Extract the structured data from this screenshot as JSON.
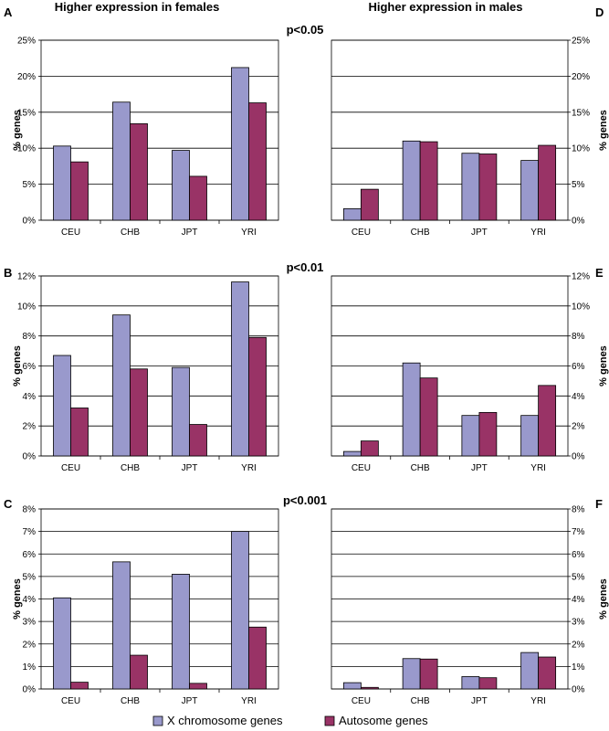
{
  "headers": {
    "left": "Higher expression in females",
    "right": "Higher expression in males"
  },
  "legend": {
    "x_label": "X chromosome genes",
    "auto_label": "Autosome genes"
  },
  "colors": {
    "x_chromosome": "#9999cc",
    "autosome": "#993366",
    "gridline": "#000000"
  },
  "chart_data": [
    {
      "type": "bar",
      "panel": "A",
      "significance": "p<0.05",
      "ylabel": "% genes",
      "ylim": [
        0,
        25
      ],
      "yticks": [
        "0%",
        "5%",
        "10%",
        "15%",
        "20%",
        "25%"
      ],
      "categories": [
        "CEU",
        "CHB",
        "JPT",
        "YRI"
      ],
      "series": [
        {
          "name": "X chromosome genes",
          "values": [
            10.3,
            16.4,
            9.7,
            21.2
          ]
        },
        {
          "name": "Autosome genes",
          "values": [
            8.1,
            13.4,
            6.1,
            16.3
          ]
        }
      ]
    },
    {
      "type": "bar",
      "panel": "D",
      "ylabel": "% genes",
      "ylim": [
        0,
        25
      ],
      "yticks": [
        "0%",
        "5%",
        "10%",
        "15%",
        "20%",
        "25%"
      ],
      "categories": [
        "CEU",
        "CHB",
        "JPT",
        "YRI"
      ],
      "series": [
        {
          "name": "X chromosome genes",
          "values": [
            1.6,
            11.0,
            9.3,
            8.3
          ]
        },
        {
          "name": "Autosome genes",
          "values": [
            4.3,
            10.9,
            9.2,
            10.4
          ]
        }
      ]
    },
    {
      "type": "bar",
      "panel": "B",
      "significance": "p<0.01",
      "ylabel": "% genes",
      "ylim": [
        0,
        12
      ],
      "yticks": [
        "0%",
        "2%",
        "4%",
        "6%",
        "8%",
        "10%",
        "12%"
      ],
      "categories": [
        "CEU",
        "CHB",
        "JPT",
        "YRI"
      ],
      "series": [
        {
          "name": "X chromosome genes",
          "values": [
            6.7,
            9.4,
            5.9,
            11.6
          ]
        },
        {
          "name": "Autosome genes",
          "values": [
            3.2,
            5.8,
            2.1,
            7.9
          ]
        }
      ]
    },
    {
      "type": "bar",
      "panel": "E",
      "ylabel": "% genes",
      "ylim": [
        0,
        12
      ],
      "yticks": [
        "0%",
        "2%",
        "4%",
        "6%",
        "8%",
        "10%",
        "12%"
      ],
      "categories": [
        "CEU",
        "CHB",
        "JPT",
        "YRI"
      ],
      "series": [
        {
          "name": "X chromosome genes",
          "values": [
            0.3,
            6.2,
            2.7,
            2.7
          ]
        },
        {
          "name": "Autosome genes",
          "values": [
            1.0,
            5.2,
            2.9,
            4.7
          ]
        }
      ]
    },
    {
      "type": "bar",
      "panel": "C",
      "significance": "p<0.001",
      "ylabel": "% genes",
      "ylim": [
        0,
        8
      ],
      "yticks": [
        "0%",
        "1%",
        "2%",
        "3%",
        "4%",
        "5%",
        "6%",
        "7%",
        "8%"
      ],
      "categories": [
        "CEU",
        "CHB",
        "JPT",
        "YRI"
      ],
      "series": [
        {
          "name": "X chromosome genes",
          "values": [
            4.05,
            5.65,
            5.1,
            7.0
          ]
        },
        {
          "name": "Autosome genes",
          "values": [
            0.3,
            1.5,
            0.25,
            2.75
          ]
        }
      ]
    },
    {
      "type": "bar",
      "panel": "F",
      "ylabel": "% genes",
      "ylim": [
        0,
        8
      ],
      "yticks": [
        "0%",
        "1%",
        "2%",
        "3%",
        "4%",
        "5%",
        "6%",
        "7%",
        "8%"
      ],
      "categories": [
        "CEU",
        "CHB",
        "JPT",
        "YRI"
      ],
      "series": [
        {
          "name": "X chromosome genes",
          "values": [
            0.28,
            1.35,
            0.55,
            1.62
          ]
        },
        {
          "name": "Autosome genes",
          "values": [
            0.07,
            1.33,
            0.5,
            1.42
          ]
        }
      ]
    }
  ]
}
